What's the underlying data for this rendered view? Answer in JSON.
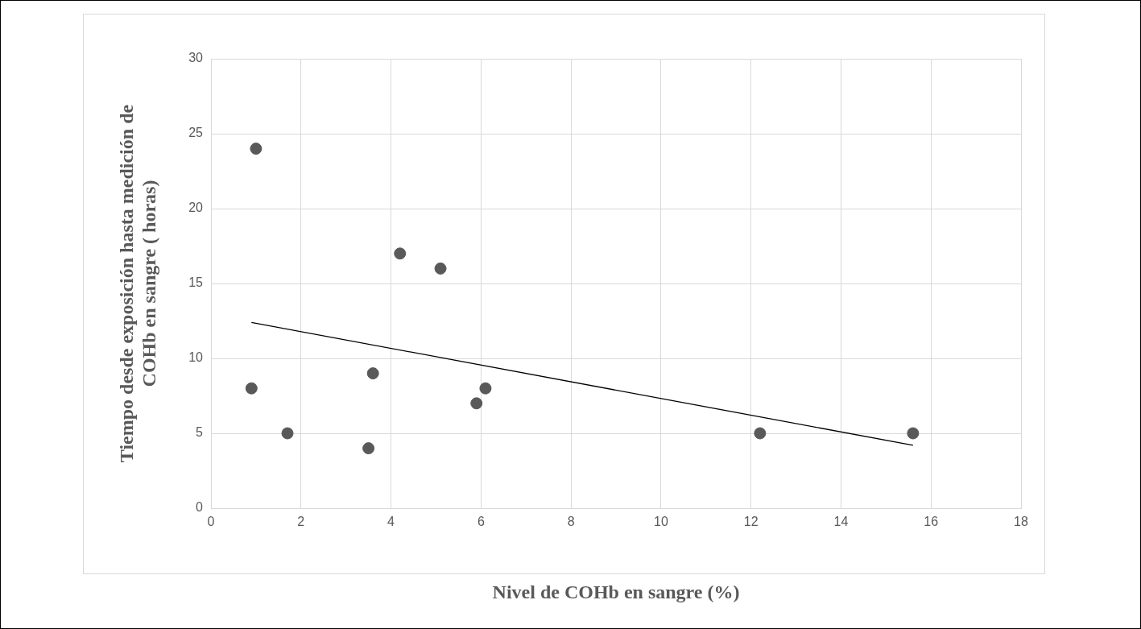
{
  "chart_data": {
    "type": "scatter",
    "xlabel": "Nivel de COHb en sangre (%)",
    "ylabel": "Tiempo desde exposición hasta medición de\nCOHb en sangre ( horas)",
    "series": [
      {
        "color": "#595959",
        "marker": "circle",
        "x": [
          1,
          0.9,
          1.7,
          3.5,
          3.6,
          4.2,
          5.1,
          5.9,
          6.1,
          12.2,
          15.6
        ],
        "values": [
          24,
          8,
          5,
          4,
          9,
          17,
          16,
          7,
          8,
          5,
          5
        ]
      },
      {
        "type": "line",
        "color": "#000000",
        "marker": "none",
        "x": [
          0.9,
          15.6
        ],
        "values": [
          12.4,
          4.2
        ]
      }
    ],
    "xlim": [
      0,
      18
    ],
    "xticks": [
      0,
      2,
      4,
      6,
      8,
      10,
      12,
      14,
      16,
      18
    ],
    "ylim": [
      0,
      30
    ],
    "yticks": [
      0,
      5,
      10,
      15,
      20,
      25,
      30
    ],
    "grid": true,
    "legend": false
  }
}
